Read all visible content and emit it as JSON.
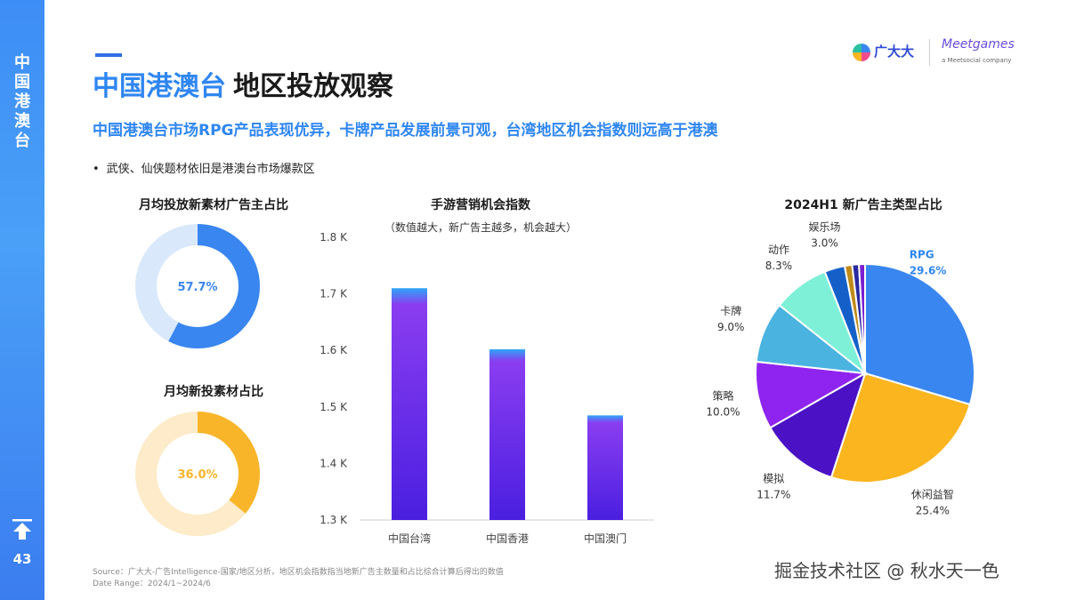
{
  "sidebar": {
    "title_chars": [
      "中",
      "国",
      "港",
      "澳",
      "台"
    ],
    "icon": "upload-arrow-icon",
    "page_number": "43"
  },
  "logo": {
    "brand": "广大大",
    "partner": "Meetgames",
    "partner_sub": "a Meetsocial company",
    "icon": "brand-logo-icon"
  },
  "header": {
    "title_highlight": "中国港澳台",
    "title_rest": "地区投放观察",
    "subtitle": "中国港澳台市场RPG产品表现优异，卡牌产品发展前景可观，台湾地区机会指数则远高于港澳",
    "bullet_mark": "•",
    "bullet": "武侠、仙侠题材依旧是港澳台市场爆款区"
  },
  "colors": {
    "accent": "#2f86f2",
    "donut1": "#3a86f0",
    "donut1_track": "#d9e8fb",
    "donut2": "#f9b52a",
    "donut2_track": "#fdebc9",
    "bar_top": "#2ea6f8",
    "bar_mid": "#8a3df0",
    "bar_bottom": "#4a1fe0"
  },
  "chart_data": [
    {
      "type": "pie",
      "subtype": "donut",
      "title": "月均投放新素材广告主占比",
      "values": [
        57.7
      ],
      "label": "57.7%"
    },
    {
      "type": "pie",
      "subtype": "donut",
      "title": "月均新投素材占比",
      "values": [
        36.0
      ],
      "label": "36.0%"
    },
    {
      "type": "bar",
      "title": "手游营销机会指数",
      "subtitle": "（数值越大，新广告主越多，机会越大）",
      "categories": [
        "中国台湾",
        "中国香港",
        "中国澳门"
      ],
      "values": [
        1710,
        1602,
        1485
      ],
      "ylim": [
        1300,
        1800
      ],
      "yticks": [
        1300,
        1400,
        1500,
        1600,
        1700,
        1800
      ],
      "ytick_labels": [
        "1.3 K",
        "1.4 K",
        "1.5 K",
        "1.6 K",
        "1.7 K",
        "1.8 K"
      ],
      "grid": false
    },
    {
      "type": "pie",
      "title": "2024H1 新广告主类型占比",
      "slices": [
        {
          "name": "RPG",
          "value": 29.6,
          "label": "29.6%",
          "color": "#3a86f0"
        },
        {
          "name": "休闲益智",
          "value": 25.4,
          "label": "25.4%",
          "color": "#fbb51f"
        },
        {
          "name": "模拟",
          "value": 11.7,
          "label": "11.7%",
          "color": "#4a12c4"
        },
        {
          "name": "策略",
          "value": 10.0,
          "label": "10.0%",
          "color": "#8f24f0"
        },
        {
          "name": "卡牌",
          "value": 9.0,
          "label": "9.0%",
          "color": "#4ab3e0"
        },
        {
          "name": "动作",
          "value": 8.3,
          "label": "8.3%",
          "color": "#7ef0d8"
        },
        {
          "name": "娱乐场",
          "value": 3.0,
          "label": "3.0%",
          "color": "#1560c8"
        },
        {
          "name": "",
          "value": 1.1,
          "label": "",
          "color": "#c08a18"
        },
        {
          "name": "",
          "value": 1.0,
          "label": "",
          "color": "#2a2aa0"
        },
        {
          "name": "",
          "value": 0.9,
          "label": "",
          "color": "#7a1fd0"
        }
      ]
    }
  ],
  "footer": {
    "source": "Source：广大大-广告Intelligence-国家/地区分析，地区机会指数指当地新广告主数量和占比综合计算后得出的数值",
    "date_range": "Date Range：2024/1~2024/6"
  },
  "watermark": "掘金技术社区 @ 秋水天一色"
}
